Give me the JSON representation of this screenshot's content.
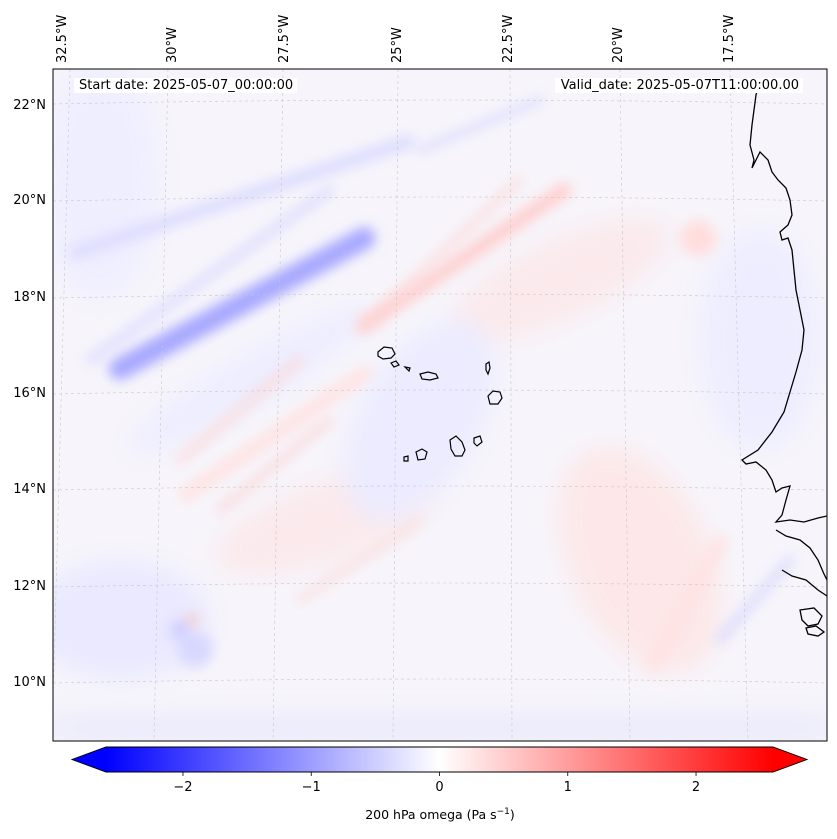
{
  "header": {
    "start_date": "Start date: 2025-05-07_00:00:00",
    "valid_date": "Valid_date: 2025-05-07T11:00:00.00"
  },
  "axes": {
    "lon_labels": [
      "32.5°W",
      "30°W",
      "27.5°W",
      "25°W",
      "22.5°W",
      "20°W",
      "17.5°W"
    ],
    "lat_labels": [
      "22°N",
      "20°N",
      "18°N",
      "16°N",
      "14°N",
      "12°N",
      "10°N"
    ]
  },
  "colorbar": {
    "min": -2.6,
    "max": 2.6,
    "ticks": [
      "−2",
      "−1",
      "0",
      "1",
      "2"
    ],
    "label_prefix": "200 hPa omega (Pa s",
    "label_exp": "−1",
    "label_suffix": ")",
    "low_color": "#0000ff",
    "mid_color": "#ffffff",
    "high_color": "#ff0000"
  },
  "chart_data": {
    "type": "heatmap",
    "variable": "200 hPa omega",
    "units": "Pa s-1",
    "title": "",
    "lon_range": [
      -33.0,
      -15.6
    ],
    "lat_range": [
      8.9,
      22.8
    ],
    "features": [
      {
        "kind": "band",
        "sign": "negative",
        "amplitude": -0.9,
        "from": [
          -31.5,
          16.6
        ],
        "to": [
          -26.0,
          19.3
        ]
      },
      {
        "kind": "band",
        "sign": "negative",
        "amplitude": -0.35,
        "from": [
          -32.5,
          19.0
        ],
        "to": [
          -25.0,
          21.3
        ]
      },
      {
        "kind": "band",
        "sign": "positive",
        "amplitude": 0.5,
        "from": [
          -26.0,
          17.5
        ],
        "to": [
          -21.5,
          20.3
        ]
      },
      {
        "kind": "band",
        "sign": "positive",
        "amplitude": 0.3,
        "from": [
          -30.0,
          14.0
        ],
        "to": [
          -26.0,
          16.5
        ]
      },
      {
        "kind": "band",
        "sign": "positive",
        "amplitude": 0.3,
        "from": [
          -19.5,
          10.5
        ],
        "to": [
          -18.0,
          13.0
        ]
      },
      {
        "kind": "blob",
        "sign": "positive",
        "amplitude": 0.35,
        "center": [
          -18.5,
          19.3
        ]
      },
      {
        "kind": "blob",
        "sign": "negative",
        "amplitude": -0.4,
        "center": [
          -29.8,
          10.8
        ]
      }
    ]
  }
}
